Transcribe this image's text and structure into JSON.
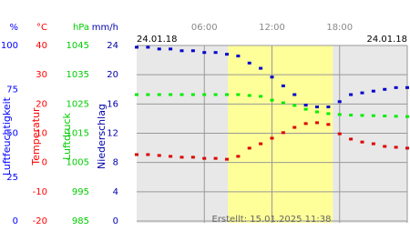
{
  "chart_data": {
    "type": "line",
    "date_left": "24.01.18",
    "date_right": "24.01.18",
    "created": "Erstellt: 15.01.2025 11:38",
    "xlim": [
      0,
      24
    ],
    "xticks": [
      {
        "value": 6,
        "label": "06:00"
      },
      {
        "value": 12,
        "label": "12:00"
      },
      {
        "value": 18,
        "label": "18:00"
      }
    ],
    "daylight": [
      8.1,
      17.4
    ],
    "grid": true,
    "axes": [
      {
        "title": "Luftfeuchtigkeit",
        "unit": "%",
        "color": "#0000ff",
        "lim": [
          0,
          100
        ],
        "ticks": [
          0,
          25,
          50,
          75,
          100
        ]
      },
      {
        "title": "Temperatur",
        "unit": "°C",
        "color": "#ff0000",
        "lim": [
          -20,
          40
        ],
        "ticks": [
          -20,
          -10,
          0,
          10,
          20,
          30,
          40
        ]
      },
      {
        "title": "Luftdruck",
        "unit": "hPa",
        "color": "#00cc00",
        "lim": [
          985,
          1045
        ],
        "ticks": [
          985,
          995,
          1005,
          1015,
          1025,
          1035,
          1045
        ]
      },
      {
        "title": "Niederschlag",
        "unit": "mm/h",
        "color": "#0000aa",
        "lim": [
          0,
          24
        ],
        "ticks": [
          0,
          4,
          8,
          12,
          16,
          20,
          24
        ]
      }
    ],
    "x": [
      0,
      1,
      2,
      3,
      4,
      5,
      6,
      7,
      8,
      9,
      10,
      11,
      12,
      13,
      14,
      15,
      16,
      17,
      18,
      19,
      20,
      21,
      22,
      23,
      24
    ],
    "series": [
      {
        "axis": 0,
        "color": "#0000cc",
        "values": [
          99,
          99,
          98,
          98,
          97,
          97,
          96,
          96,
          95,
          94,
          90,
          87,
          82,
          77,
          72,
          66,
          65,
          65,
          68,
          72,
          73,
          74,
          75,
          76,
          76
        ]
      },
      {
        "axis": 2,
        "color": "#00ee00",
        "values": [
          1028.2,
          1028.2,
          1028.2,
          1028.2,
          1028.2,
          1028.2,
          1028.2,
          1028.2,
          1028.2,
          1028.2,
          1027.9,
          1027.6,
          1026.3,
          1025.4,
          1024.5,
          1023.2,
          1022.3,
          1021.7,
          1021.4,
          1021.2,
          1021.1,
          1021.0,
          1020.9,
          1020.8,
          1020.7
        ]
      },
      {
        "axis": 1,
        "color": "#dd0000",
        "values": [
          2.7,
          2.7,
          2.4,
          2.1,
          1.8,
          1.8,
          1.4,
          1.4,
          1.1,
          2.1,
          4.9,
          6.4,
          8.3,
          10.2,
          12.0,
          13.3,
          13.6,
          13.0,
          9.8,
          8.0,
          7.0,
          6.4,
          5.5,
          5.2,
          4.9
        ]
      }
    ]
  }
}
